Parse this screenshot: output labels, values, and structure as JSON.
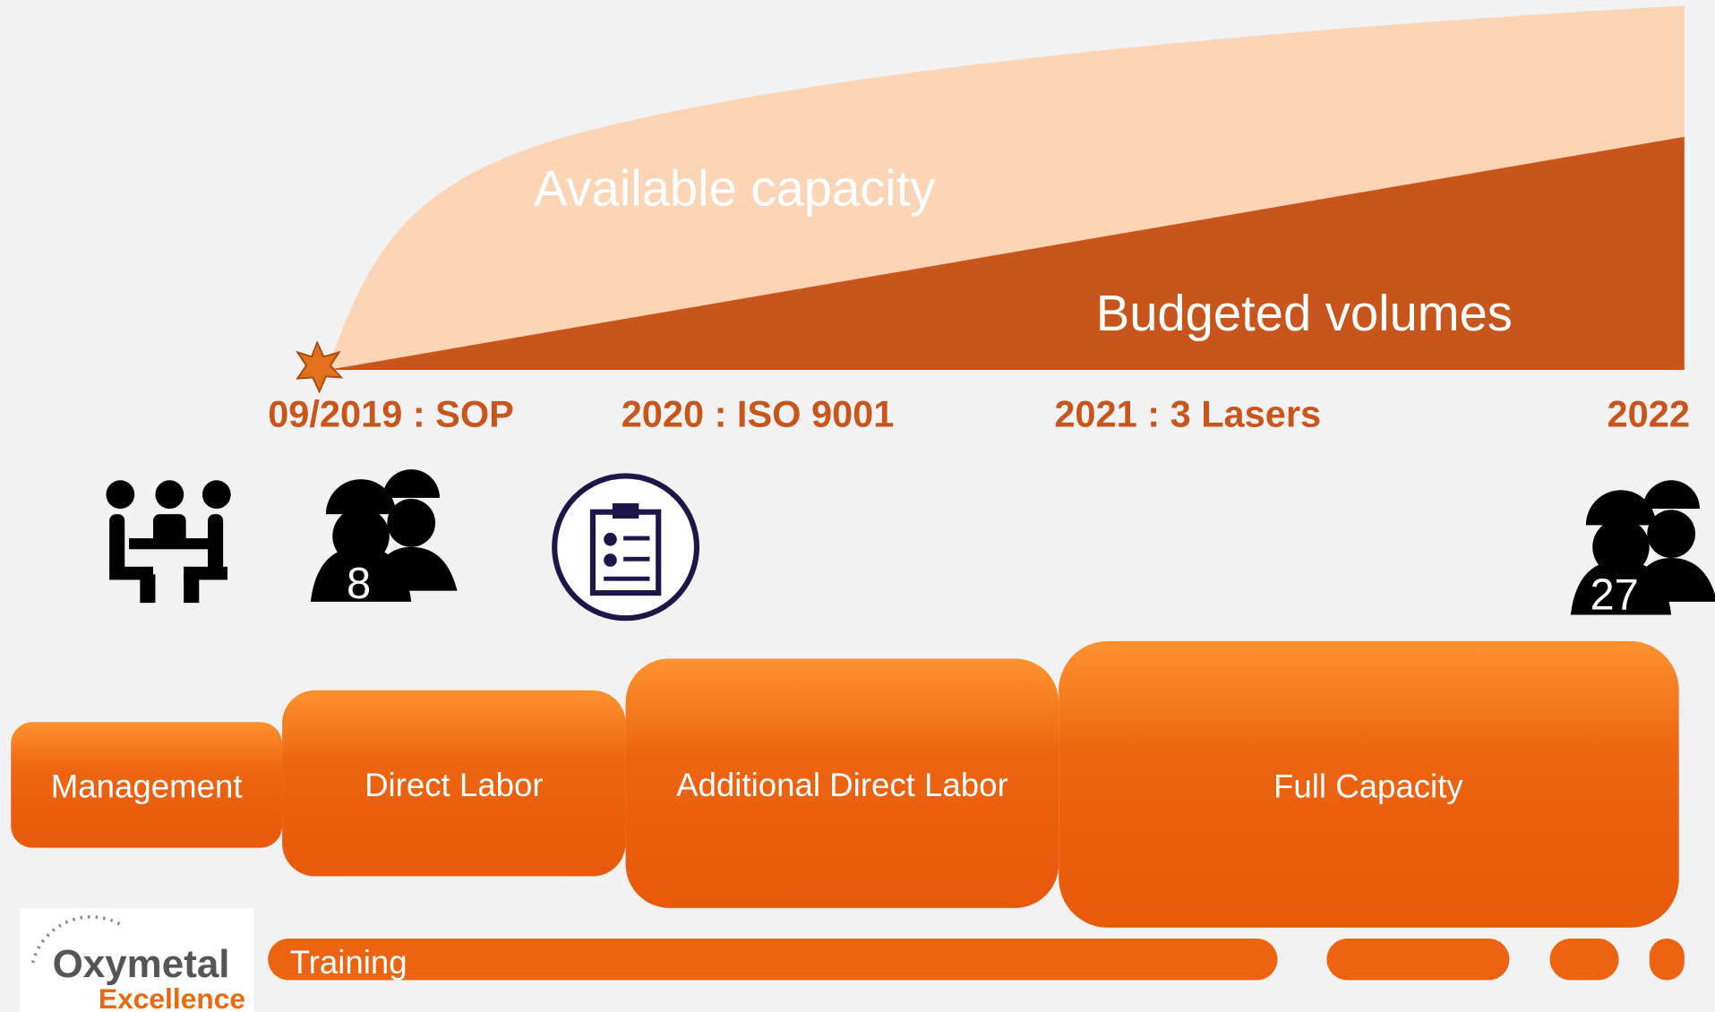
{
  "areas": {
    "available": "Available capacity",
    "budgeted": "Budgeted volumes"
  },
  "milestones": [
    "09/2019 : SOP",
    "2020 : ISO 9001",
    "2021 : 3 Lasers",
    "2022"
  ],
  "headcounts": [
    "8",
    "27"
  ],
  "phases": [
    "Management",
    "Direct Labor",
    "Additional Direct Labor",
    "Full Capacity"
  ],
  "training": "Training",
  "logo": {
    "name": "Oxymetal",
    "tagline": "Excellence"
  }
}
